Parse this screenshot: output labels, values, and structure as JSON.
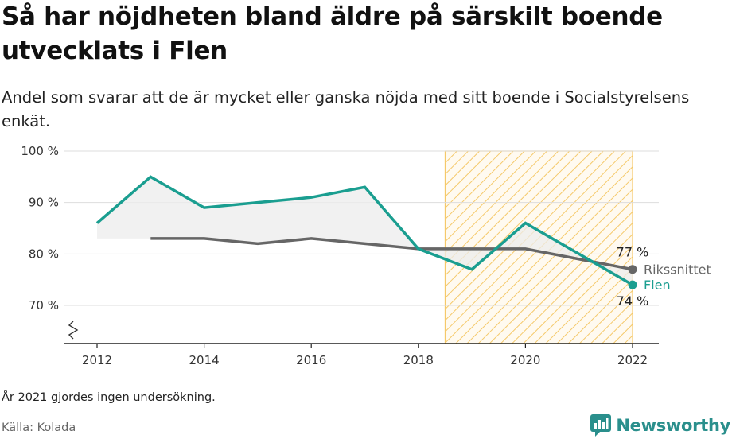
{
  "title": "Så har nöjdheten bland äldre på särskilt boende utvecklats i Flen",
  "subtitle": "Andel som svarar att de är mycket eller ganska nöjda med sitt boende i Socialstyrelsens enkät.",
  "note": "År 2021 gjordes ingen undersökning.",
  "source": "Källa: Kolada",
  "brand": {
    "name": "Newsworthy",
    "icon": "bar-chart-logo-icon",
    "color": "#2a8f8c"
  },
  "chart_data": {
    "type": "line",
    "title": "",
    "xlabel": "",
    "ylabel": "",
    "xlim": [
      2012,
      2022
    ],
    "ylim": [
      70,
      100
    ],
    "axis_break": true,
    "grid": true,
    "x_ticks": [
      {
        "value": 2012,
        "label": "2012"
      },
      {
        "value": 2014,
        "label": "2014"
      },
      {
        "value": 2016,
        "label": "2016"
      },
      {
        "value": 2018,
        "label": "2018"
      },
      {
        "value": 2020,
        "label": "2020"
      },
      {
        "value": 2022,
        "label": "2022"
      }
    ],
    "y_ticks": [
      {
        "value": 100,
        "label": "100 %"
      },
      {
        "value": 90,
        "label": "90 %"
      },
      {
        "value": 80,
        "label": "80 %"
      },
      {
        "value": 70,
        "label": "70 %"
      }
    ],
    "highlight_period": [
      2018.5,
      2022
    ],
    "series": [
      {
        "name": "Rikssnittet",
        "color": "#666666",
        "points": [
          [
            2013,
            83
          ],
          [
            2014,
            83
          ],
          [
            2015,
            82
          ],
          [
            2016,
            83
          ],
          [
            2017,
            82
          ],
          [
            2018,
            81
          ],
          [
            2019,
            81
          ],
          [
            2020,
            81
          ],
          [
            2022,
            77
          ]
        ],
        "end_label": "77 %"
      },
      {
        "name": "Flen",
        "color": "#1a9e90",
        "points": [
          [
            2012,
            86
          ],
          [
            2013,
            95
          ],
          [
            2014,
            89
          ],
          [
            2015,
            90
          ],
          [
            2016,
            91
          ],
          [
            2017,
            93
          ],
          [
            2018,
            81
          ],
          [
            2019,
            77
          ],
          [
            2020,
            86
          ],
          [
            2022,
            74
          ]
        ],
        "end_label": "74 %"
      }
    ],
    "colors": {
      "highlight_stroke": "#f5c96a",
      "grid": "#dddddd",
      "area_fill": "#ececec"
    }
  }
}
